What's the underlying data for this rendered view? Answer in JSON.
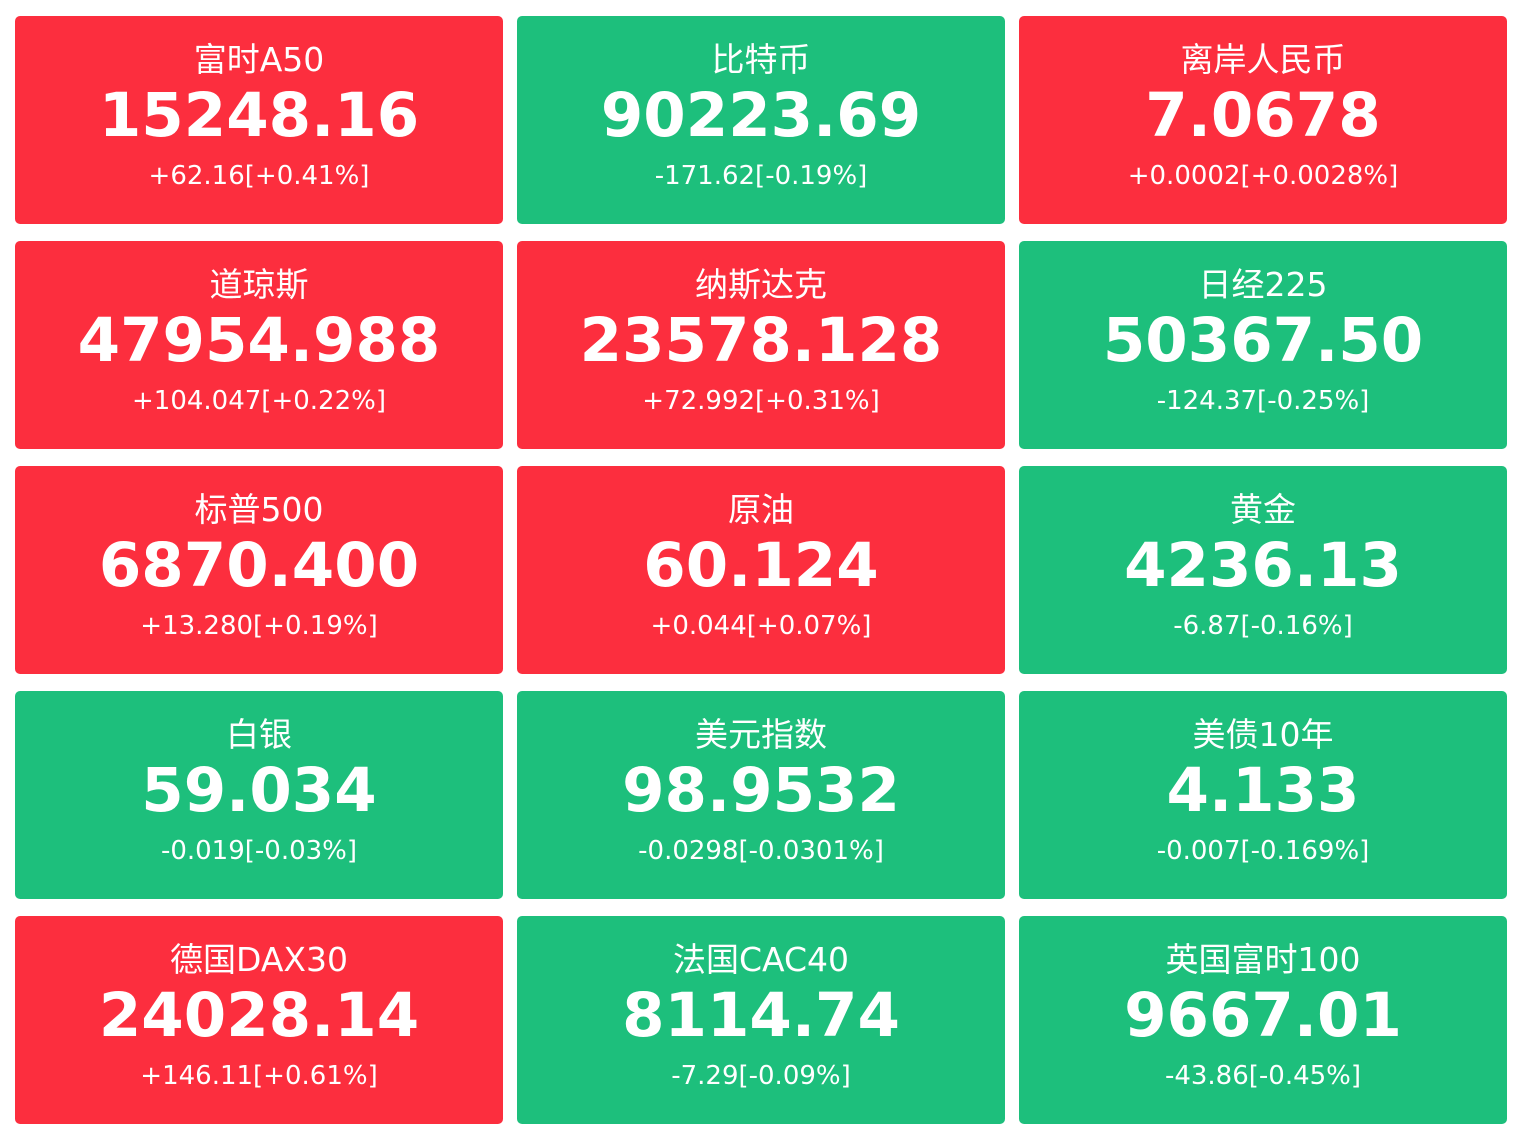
{
  "colors": {
    "up": "#fc2e3e",
    "down": "#1dbf7c",
    "text": "#ffffff"
  },
  "tiles": [
    {
      "name": "富时A50",
      "price": "15248.16",
      "change": "+62.16[+0.41%]",
      "direction": "up"
    },
    {
      "name": "比特币",
      "price": "90223.69",
      "change": "-171.62[-0.19%]",
      "direction": "down"
    },
    {
      "name": "离岸人民币",
      "price": "7.0678",
      "change": "+0.0002[+0.0028%]",
      "direction": "up"
    },
    {
      "name": "道琼斯",
      "price": "47954.988",
      "change": "+104.047[+0.22%]",
      "direction": "up"
    },
    {
      "name": "纳斯达克",
      "price": "23578.128",
      "change": "+72.992[+0.31%]",
      "direction": "up"
    },
    {
      "name": "日经225",
      "price": "50367.50",
      "change": "-124.37[-0.25%]",
      "direction": "down"
    },
    {
      "name": "标普500",
      "price": "6870.400",
      "change": "+13.280[+0.19%]",
      "direction": "up"
    },
    {
      "name": "原油",
      "price": "60.124",
      "change": "+0.044[+0.07%]",
      "direction": "up"
    },
    {
      "name": "黄金",
      "price": "4236.13",
      "change": "-6.87[-0.16%]",
      "direction": "down"
    },
    {
      "name": "白银",
      "price": "59.034",
      "change": "-0.019[-0.03%]",
      "direction": "down"
    },
    {
      "name": "美元指数",
      "price": "98.9532",
      "change": "-0.0298[-0.0301%]",
      "direction": "down"
    },
    {
      "name": "美债10年",
      "price": "4.133",
      "change": "-0.007[-0.169%]",
      "direction": "down"
    },
    {
      "name": "德国DAX30",
      "price": "24028.14",
      "change": "+146.11[+0.61%]",
      "direction": "up"
    },
    {
      "name": "法国CAC40",
      "price": "8114.74",
      "change": "-7.29[-0.09%]",
      "direction": "down"
    },
    {
      "name": "英国富时100",
      "price": "9667.01",
      "change": "-43.86[-0.45%]",
      "direction": "down"
    }
  ]
}
